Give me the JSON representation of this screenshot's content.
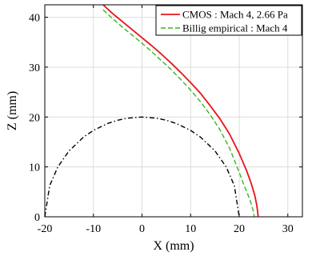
{
  "chart_data": {
    "type": "line",
    "title": "",
    "xlabel": "X (mm)",
    "ylabel": "Z (mm)",
    "xlim": [
      -20,
      33
    ],
    "ylim": [
      0,
      42.5
    ],
    "xticks": [
      -20,
      -10,
      0,
      10,
      20,
      30
    ],
    "yticks": [
      0,
      10,
      20,
      30,
      40
    ],
    "xtick_labels": [
      "-20",
      "-10",
      "0",
      "10",
      "20",
      "30"
    ],
    "ytick_labels": [
      "0",
      "10",
      "20",
      "30",
      "40"
    ],
    "grid": true,
    "legend_position": "top-right",
    "series": [
      {
        "name": "CMOS : Mach 4, 2.66 Pa",
        "color": "#e8141c",
        "style": "solid",
        "x": [
          -8.0,
          -6.0,
          -4.0,
          -2.0,
          0.0,
          2.0,
          4.0,
          6.0,
          8.0,
          10.0,
          12.0,
          14.0,
          16.0,
          18.0,
          20.0,
          21.5,
          22.5,
          23.2,
          23.6,
          23.8,
          23.9
        ],
        "y": [
          42.5,
          40.7,
          39.1,
          37.5,
          35.9,
          34.3,
          32.6,
          30.8,
          28.9,
          26.9,
          24.8,
          22.3,
          19.7,
          16.6,
          12.7,
          9.3,
          6.6,
          4.3,
          2.4,
          1.0,
          0.0
        ]
      },
      {
        "name": "Billig empirical : Mach 4",
        "color": "#3ab520",
        "style": "dashed",
        "x": [
          -8.0,
          -6.0,
          -4.0,
          -2.0,
          0.0,
          2.0,
          4.0,
          6.0,
          8.0,
          10.0,
          12.0,
          14.0,
          16.0,
          18.0,
          20.0,
          21.0,
          21.8,
          22.4,
          22.8,
          23.0,
          23.1
        ],
        "y": [
          41.5,
          39.7,
          38.0,
          36.4,
          34.8,
          33.1,
          31.3,
          29.5,
          27.5,
          25.4,
          23.1,
          20.5,
          17.5,
          13.8,
          8.9,
          6.3,
          4.4,
          2.8,
          1.5,
          0.6,
          0.0
        ]
      },
      {
        "name": "",
        "color": "#000000",
        "style": "dashdot",
        "x": [
          -20.0,
          -19.0,
          -17.32,
          -15.0,
          -12.0,
          -10.0,
          -7.0,
          -5.0,
          -3.0,
          0.0,
          3.0,
          5.0,
          7.0,
          10.0,
          12.0,
          15.0,
          17.32,
          19.0,
          20.0
        ],
        "y": [
          0.0,
          6.24,
          10.0,
          13.23,
          16.0,
          17.32,
          18.73,
          19.36,
          19.77,
          20.0,
          19.77,
          19.36,
          18.73,
          17.32,
          16.0,
          13.23,
          10.0,
          6.24,
          0.0
        ]
      }
    ]
  }
}
